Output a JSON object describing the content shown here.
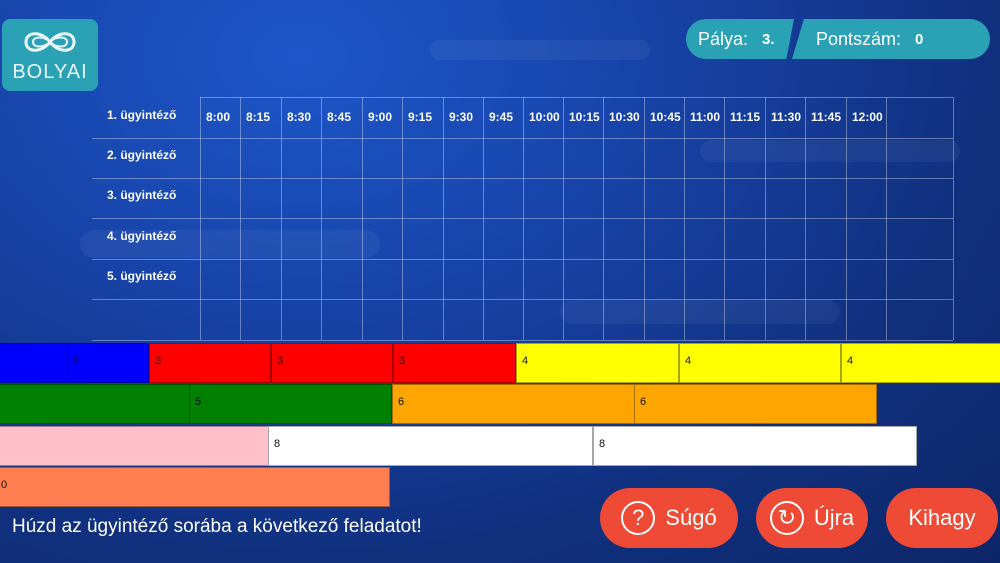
{
  "logo": {
    "text": "BOLYAI"
  },
  "hud": {
    "level_label": "Pálya:",
    "level_value": "3.",
    "score_label": "Pontszám:",
    "score_value": "0"
  },
  "grid": {
    "times": [
      "8:00",
      "8:15",
      "8:30",
      "8:45",
      "9:00",
      "9:15",
      "9:30",
      "9:45",
      "10:00",
      "10:15",
      "10:30",
      "10:45",
      "11:00",
      "11:15",
      "11:30",
      "11:45",
      "12:00"
    ],
    "agents": [
      "1. ügyintéző",
      "2. ügyintéző",
      "3. ügyintéző",
      "4. ügyintéző",
      "5. ügyintéző"
    ]
  },
  "tasks": [
    {
      "label": "",
      "color": "#0000ff"
    },
    {
      "label": "2",
      "color": "#0000ff"
    },
    {
      "label": "3",
      "color": "#ff0000"
    },
    {
      "label": "3",
      "color": "#ff0000"
    },
    {
      "label": "3",
      "color": "#ff0000"
    },
    {
      "label": "4",
      "color": "#ffff00"
    },
    {
      "label": "4",
      "color": "#ffff00"
    },
    {
      "label": "4",
      "color": "#ffff00"
    },
    {
      "label": "",
      "color": "#008000"
    },
    {
      "label": "5",
      "color": "#008000"
    },
    {
      "label": "6",
      "color": "#ffa500"
    },
    {
      "label": "6",
      "color": "#ffa500"
    },
    {
      "label": "",
      "color": "#ffc0cb"
    },
    {
      "label": "8",
      "color": "#ffffff"
    },
    {
      "label": "8",
      "color": "#ffffff"
    },
    {
      "label": "0",
      "color": "#ff7f50"
    }
  ],
  "instruction": "Húzd az ügyintéző sorába a következő feladatot!",
  "buttons": {
    "help": "Súgó",
    "help_icon": "?",
    "restart": "Újra",
    "restart_icon": "↻",
    "skip": "Kihagy"
  }
}
